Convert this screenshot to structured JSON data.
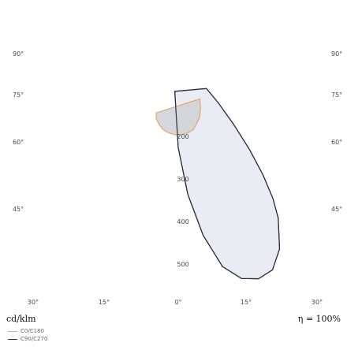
{
  "chart_data": {
    "type": "polar-luminous-intensity",
    "title": "",
    "unit_label": "cd/klm",
    "efficiency_label": "η = 100%",
    "left_angle_labels": [
      "90°",
      "75°",
      "60°",
      "45°"
    ],
    "right_angle_labels": [
      "90°",
      "75°",
      "60°",
      "45°"
    ],
    "bottom_angle_labels": [
      "30°",
      "15°",
      "0°",
      "15°",
      "30°"
    ],
    "radial_labels": [
      "200",
      "300",
      "400",
      "500"
    ],
    "colors": {
      "c0_stroke": "#e8a060",
      "c0_fill": "#d0d3d8",
      "c90_stroke": "#2a3040",
      "c90_fill": "#e8ebf3",
      "grid": "#e6e6e6"
    },
    "series": [
      {
        "name": "C0/C180",
        "points": [
          {
            "angle": -22,
            "value": 138
          },
          {
            "angle": -20,
            "value": 151
          },
          {
            "angle": -16,
            "value": 162
          },
          {
            "angle": -12,
            "value": 171
          },
          {
            "angle": -8,
            "value": 176
          },
          {
            "angle": -4,
            "value": 179
          },
          {
            "angle": 0,
            "value": 180
          },
          {
            "angle": 4,
            "value": 178
          },
          {
            "angle": 8,
            "value": 176
          },
          {
            "angle": 12,
            "value": 171
          },
          {
            "angle": 16,
            "value": 159
          },
          {
            "angle": 20,
            "value": 147
          },
          {
            "angle": 24,
            "value": 129
          },
          {
            "angle": 28,
            "value": 108
          }
        ]
      },
      {
        "name": "C90/C270",
        "points": [
          {
            "angle": -6,
            "value": 78
          },
          {
            "angle": 0,
            "value": 210
          },
          {
            "angle": 4,
            "value": 320
          },
          {
            "angle": 8,
            "value": 420
          },
          {
            "angle": 12,
            "value": 500
          },
          {
            "angle": 16,
            "value": 538
          },
          {
            "angle": 20,
            "value": 551
          },
          {
            "angle": 24,
            "value": 544
          },
          {
            "angle": 28,
            "value": 507
          },
          {
            "angle": 32,
            "value": 443
          },
          {
            "angle": 34,
            "value": 398
          },
          {
            "angle": 36,
            "value": 339
          },
          {
            "angle": 38,
            "value": 272
          },
          {
            "angle": 40,
            "value": 201
          },
          {
            "angle": 42,
            "value": 140
          },
          {
            "angle": 43,
            "value": 97
          }
        ]
      }
    ]
  }
}
